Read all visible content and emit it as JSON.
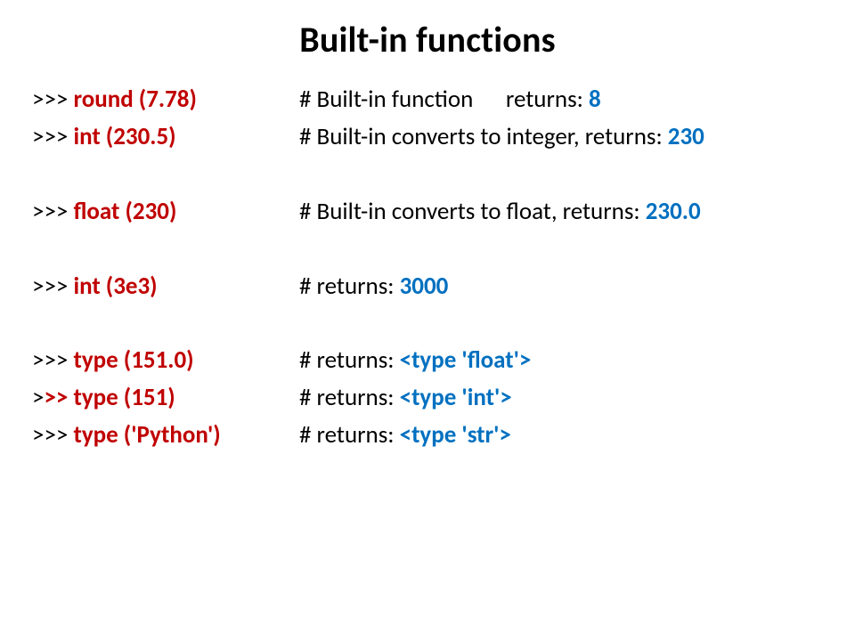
{
  "title": "Built-in functions",
  "colors": {
    "black": "#000000",
    "red": "#c00000",
    "blue": "#0070c0",
    "bold_weight": "700"
  },
  "rows": [
    {
      "left": [
        {
          "t": ">>> ",
          "c": "#000000",
          "b": false
        },
        {
          "t": "round (7.78)",
          "c": "#c00000",
          "b": true
        }
      ],
      "right": [
        {
          "t": "# Built-in function      returns: ",
          "c": "#000000",
          "b": false
        },
        {
          "t": "8",
          "c": "#0070c0",
          "b": true
        }
      ],
      "gap_after": false
    },
    {
      "left": [
        {
          "t": ">>> ",
          "c": "#000000",
          "b": false
        },
        {
          "t": "int (230.5)",
          "c": "#c00000",
          "b": true
        }
      ],
      "right": [
        {
          "t": "# Built-in converts to integer, returns: ",
          "c": "#000000",
          "b": false
        },
        {
          "t": "230",
          "c": "#0070c0",
          "b": true
        }
      ],
      "gap_after": true
    },
    {
      "left": [
        {
          "t": ">>> ",
          "c": "#000000",
          "b": false
        },
        {
          "t": "float (230)",
          "c": "#c00000",
          "b": true
        }
      ],
      "right": [
        {
          "t": "# Built-in converts to float, returns: ",
          "c": "#000000",
          "b": false
        },
        {
          "t": "230.0",
          "c": "#0070c0",
          "b": true
        }
      ],
      "gap_after": true
    },
    {
      "left": [
        {
          "t": ">>> ",
          "c": "#000000",
          "b": false
        },
        {
          "t": "int (3e3)",
          "c": "#c00000",
          "b": true
        }
      ],
      "right": [
        {
          "t": "# returns: ",
          "c": "#000000",
          "b": false
        },
        {
          "t": "3000",
          "c": "#0070c0",
          "b": true
        }
      ],
      "gap_after": true
    },
    {
      "left": [
        {
          "t": ">>> ",
          "c": "#000000",
          "b": false
        },
        {
          "t": "type (151.0)",
          "c": "#c00000",
          "b": true
        }
      ],
      "right": [
        {
          "t": "# returns: ",
          "c": "#000000",
          "b": false
        },
        {
          "t": "<type 'float'>",
          "c": "#0070c0",
          "b": true
        }
      ],
      "gap_after": false
    },
    {
      "left": [
        {
          "t": ">",
          "c": "#000000",
          "b": false
        },
        {
          "t": ">> ",
          "c": "#c00000",
          "b": true
        },
        {
          "t": "type (151)",
          "c": "#c00000",
          "b": true
        }
      ],
      "right": [
        {
          "t": "# returns: ",
          "c": "#000000",
          "b": false
        },
        {
          "t": "<type 'int'>",
          "c": "#0070c0",
          "b": true
        }
      ],
      "gap_after": false
    },
    {
      "left": [
        {
          "t": ">>> ",
          "c": "#000000",
          "b": false
        },
        {
          "t": "type ('Python')",
          "c": "#c00000",
          "b": true
        }
      ],
      "right": [
        {
          "t": "# returns: ",
          "c": "#000000",
          "b": false
        },
        {
          "t": "<type 'str'>",
          "c": "#0070c0",
          "b": true
        }
      ],
      "gap_after": false
    }
  ]
}
